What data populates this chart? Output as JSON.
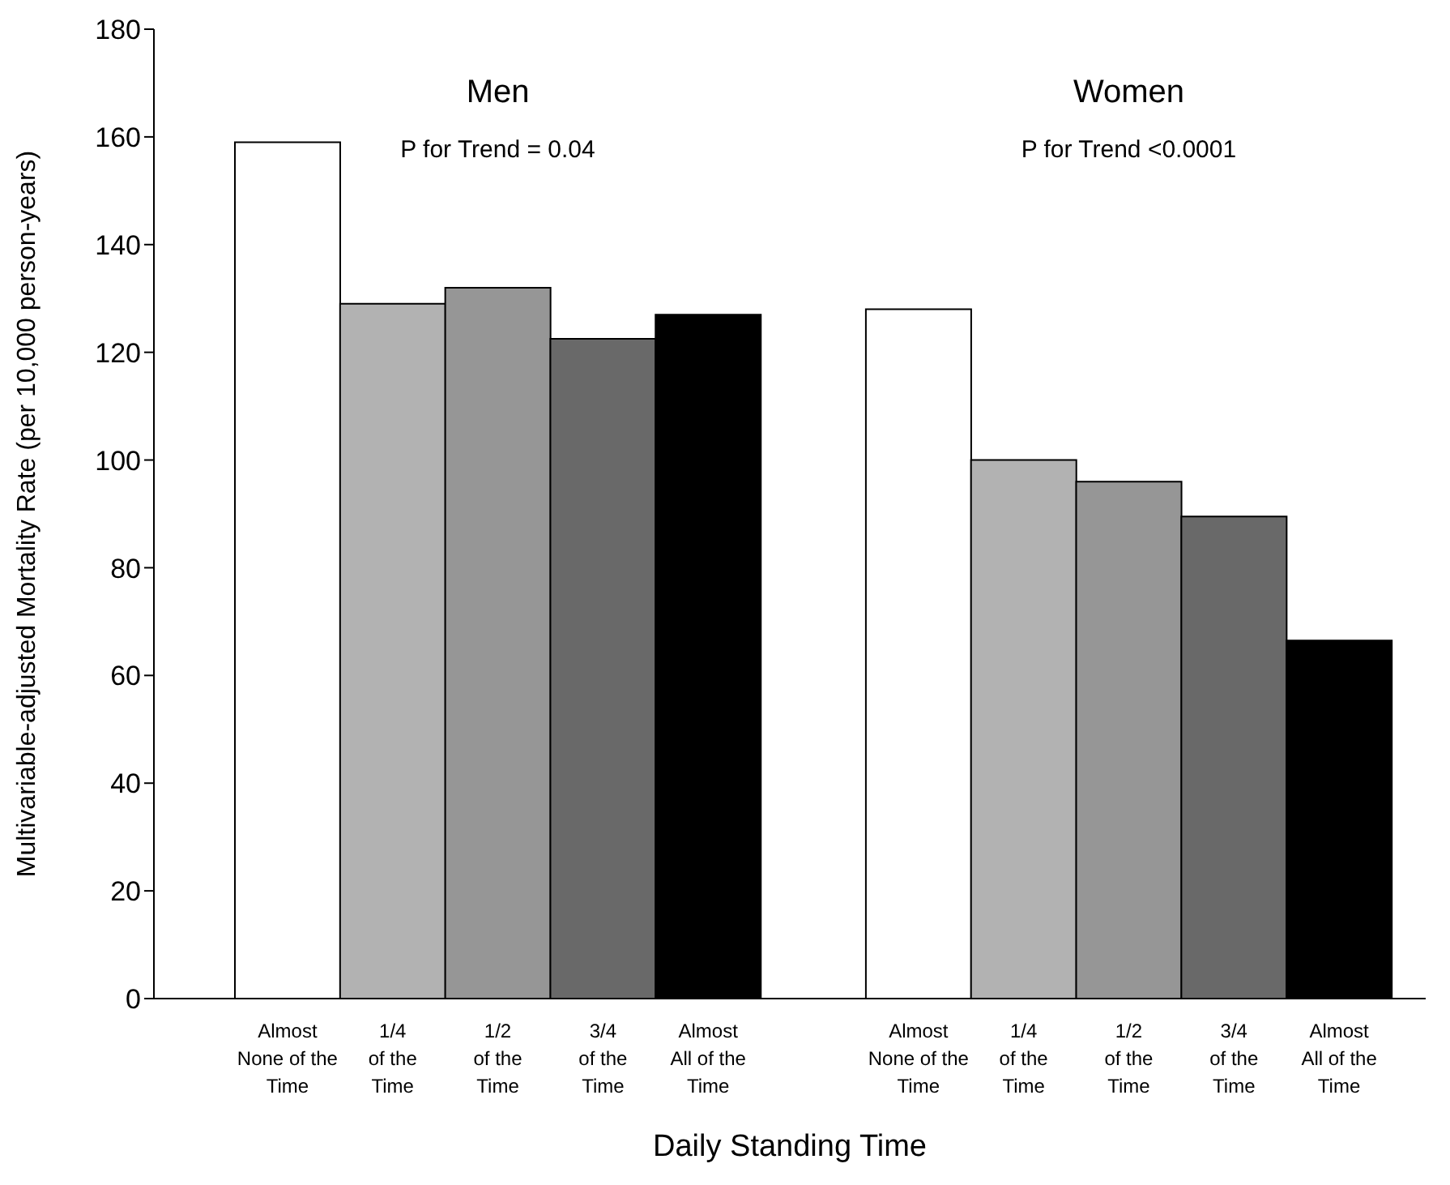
{
  "chart_data": {
    "type": "bar",
    "xlabel": "Daily Standing Time",
    "ylabel": "Multivariable-adjusted Mortality Rate (per 10,000 person-years)",
    "categories": [
      "Almost None of the Time",
      "1/4 of the Time",
      "1/2 of the Time",
      "3/4 of the Time",
      "Almost All of the Time",
      null,
      "Almost None of the Time",
      "1/4 of the Time",
      "1/2 of the Time",
      "3/4 of the Time",
      "Almost All of the Time"
    ],
    "values": [
      159,
      129,
      132,
      122.5,
      127,
      null,
      128,
      100,
      96,
      89.5,
      66.5
    ],
    "colors": [
      "#ffffff",
      "#b2b2b2",
      "#969696",
      "#696969",
      "#000000",
      "#ffffff",
      "#ffffff",
      "#b2b2b2",
      "#969696",
      "#696969",
      "#000000"
    ],
    "ylim": [
      0,
      180
    ],
    "yticks": [
      0,
      20,
      40,
      60,
      80,
      100,
      120,
      140,
      160,
      180
    ],
    "grid": false,
    "legend": false,
    "annotations": [
      "Men",
      "Women",
      "P for Trend = 0.04",
      "P for Trend <0.0001"
    ]
  }
}
